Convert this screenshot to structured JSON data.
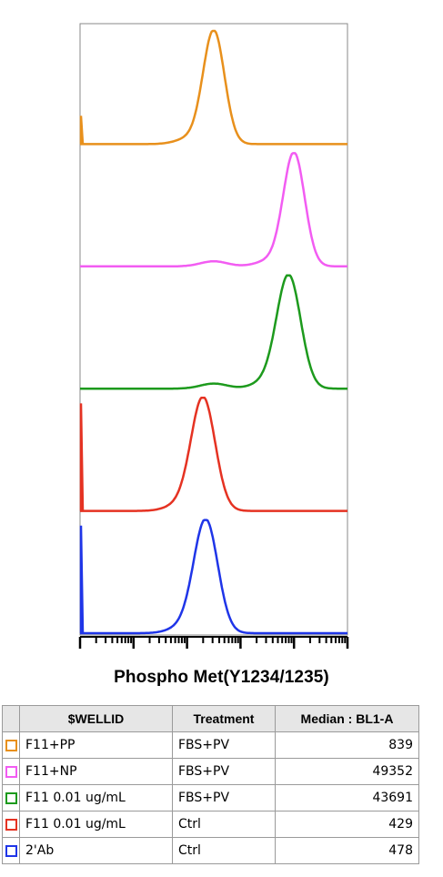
{
  "chart_data": {
    "type": "histogram-overlay",
    "xlabel": "Phospho Met(Y1234/1235)",
    "x_scale": "log",
    "series": [
      {
        "name": "F11+PP",
        "color": "#e8901c",
        "peak_position": 0.5,
        "peak_width": 0.04,
        "baseline_spike": true,
        "shoulder": false
      },
      {
        "name": "F11+NP",
        "color": "#f25cf2",
        "peak_position": 0.8,
        "peak_width": 0.04,
        "baseline_spike": false,
        "shoulder": true
      },
      {
        "name": "F11 0.01 ug/mL",
        "color": "#1d9a1d",
        "peak_position": 0.78,
        "peak_width": 0.045,
        "baseline_spike": false,
        "shoulder": true
      },
      {
        "name": "F11 0.01 ug/mL",
        "color": "#e53222",
        "peak_position": 0.46,
        "peak_width": 0.045,
        "baseline_spike": true,
        "shoulder": false
      },
      {
        "name": "2'Ab",
        "color": "#1f35e8",
        "peak_position": 0.47,
        "peak_width": 0.045,
        "baseline_spike": true,
        "shoulder": false
      }
    ]
  },
  "table": {
    "headers": [
      "$WELLID",
      "Treatment",
      "Median : BL1-A"
    ],
    "rows": [
      {
        "color": "#e8901c",
        "well": "F11+PP",
        "treatment": "FBS+PV",
        "median": "839"
      },
      {
        "color": "#f25cf2",
        "well": "F11+NP",
        "treatment": "FBS+PV",
        "median": "49352"
      },
      {
        "color": "#1d9a1d",
        "well": "F11 0.01 ug/mL",
        "treatment": "FBS+PV",
        "median": "43691"
      },
      {
        "color": "#e53222",
        "well": "F11 0.01 ug/mL",
        "treatment": "Ctrl",
        "median": "429"
      },
      {
        "color": "#1f35e8",
        "well": "2'Ab",
        "treatment": "Ctrl",
        "median": "478"
      }
    ]
  }
}
